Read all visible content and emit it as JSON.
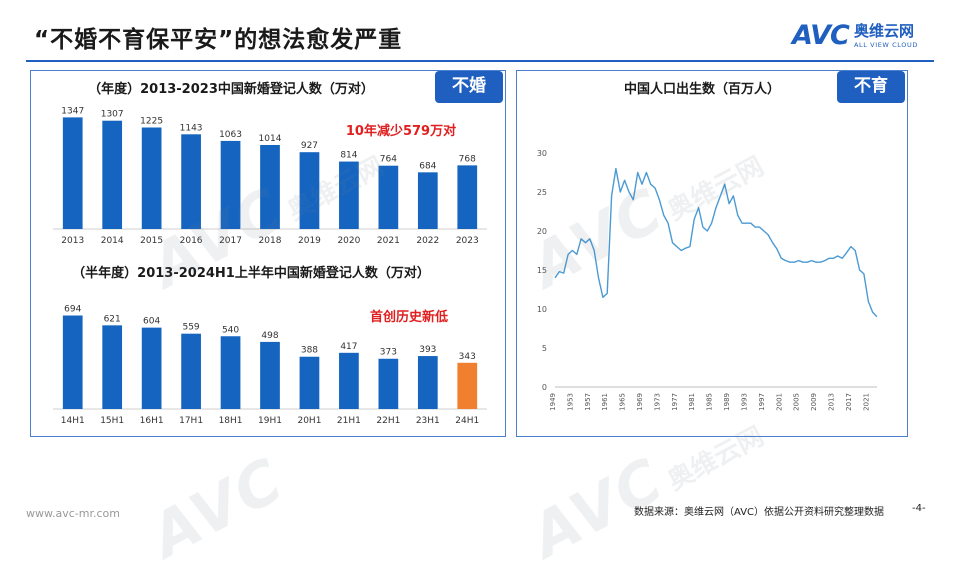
{
  "header": {
    "title": "“不婚不育保平安”的想法愈发严重",
    "brand_mark": "AVC",
    "brand_cn": "奥维云网",
    "brand_en": "ALL VIEW CLOUD"
  },
  "colors": {
    "bar": "#1565c0",
    "highlight_bar": "#f08030",
    "line": "#4a9ad4",
    "accent": "#1f5fbf",
    "annotation": "#e02020"
  },
  "panels": {
    "left_tag": "不婚",
    "right_tag": "不育"
  },
  "footer": {
    "url": "www.avc-mr.com",
    "source": "数据来源：奥维云网（AVC）依据公开资料研究整理数据",
    "page": "-4-"
  },
  "watermark": {
    "mark": "AVC",
    "cn": "奥维云网",
    "en": "ALL VIEW CLOUD"
  },
  "chart_data": [
    {
      "type": "bar",
      "title": "（年度）2013-2023中国新婚登记人数（万对）",
      "annotation": "10年减少579万对",
      "categories": [
        "2013",
        "2014",
        "2015",
        "2016",
        "2017",
        "2018",
        "2019",
        "2020",
        "2021",
        "2022",
        "2023"
      ],
      "values": [
        1347,
        1307,
        1225,
        1143,
        1063,
        1014,
        927,
        814,
        764,
        684,
        768
      ],
      "ylim": [
        0,
        1400
      ],
      "grid": false
    },
    {
      "type": "bar",
      "title": "（半年度）2013-2024H1上半年中国新婚登记人数（万对）",
      "annotation": "首创历史新低",
      "categories": [
        "14H1",
        "15H1",
        "16H1",
        "17H1",
        "18H1",
        "19H1",
        "20H1",
        "21H1",
        "22H1",
        "23H1",
        "24H1"
      ],
      "values": [
        694,
        621,
        604,
        559,
        540,
        498,
        388,
        417,
        373,
        393,
        343
      ],
      "highlight_index": 10,
      "ylim": [
        0,
        720
      ],
      "grid": false
    },
    {
      "type": "line",
      "title": "中国人口出生数（百万人）",
      "x_tick_labels": [
        "1949",
        "1953",
        "1957",
        "1961",
        "1965",
        "1969",
        "1973",
        "1977",
        "1981",
        "1985",
        "1989",
        "1993",
        "1997",
        "2001",
        "2005",
        "2009",
        "2013",
        "2017",
        "2021"
      ],
      "y_ticks": [
        0,
        5,
        10,
        15,
        20,
        25,
        30
      ],
      "ylim": [
        0,
        30
      ],
      "xlim": [
        1949,
        2023
      ],
      "grid": false,
      "series": [
        {
          "x": [
            1949,
            1950,
            1951,
            1952,
            1953,
            1954,
            1955,
            1956,
            1957,
            1958,
            1959,
            1960,
            1961,
            1962,
            1963,
            1964,
            1965,
            1966,
            1967,
            1968,
            1969,
            1970,
            1971,
            1972,
            1973,
            1974,
            1975,
            1976,
            1977,
            1978,
            1979,
            1980,
            1981,
            1982,
            1983,
            1984,
            1985,
            1986,
            1987,
            1988,
            1989,
            1990,
            1991,
            1992,
            1993,
            1994,
            1995,
            1996,
            1997,
            1998,
            1999,
            2000,
            2001,
            2002,
            2003,
            2004,
            2005,
            2006,
            2007,
            2008,
            2009,
            2010,
            2011,
            2012,
            2013,
            2014,
            2015,
            2016,
            2017,
            2018,
            2019,
            2020,
            2021,
            2022,
            2023
          ],
          "values": [
            14.0,
            14.8,
            14.6,
            17.0,
            17.5,
            17.0,
            19.0,
            18.5,
            19.0,
            17.5,
            14.0,
            11.5,
            12.0,
            24.5,
            28.0,
            25.0,
            26.5,
            25.0,
            24.0,
            27.5,
            26.0,
            27.5,
            26.0,
            25.5,
            24.0,
            22.0,
            21.0,
            18.5,
            18.0,
            17.5,
            17.8,
            18.0,
            21.5,
            23.0,
            20.5,
            20.0,
            21.0,
            23.0,
            24.5,
            26.0,
            23.5,
            24.5,
            22.0,
            21.0,
            21.0,
            21.0,
            20.5,
            20.5,
            20.0,
            19.5,
            18.5,
            17.7,
            16.5,
            16.2,
            16.0,
            16.0,
            16.2,
            16.0,
            16.0,
            16.2,
            16.0,
            16.0,
            16.2,
            16.5,
            16.5,
            16.8,
            16.5,
            17.2,
            18.0,
            17.5,
            15.0,
            14.5,
            11.0,
            9.6,
            9.0
          ]
        }
      ]
    }
  ]
}
